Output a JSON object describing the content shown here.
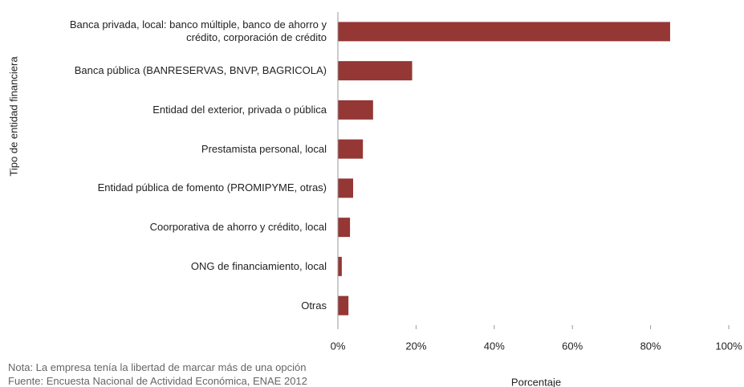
{
  "chart_data": {
    "type": "barh",
    "ylabel": "Tipo de entidad financiera",
    "xlabel": "Porcentaje",
    "notes": [
      "Nota: La empresa tenía la libertad de marcar más de una opción",
      "Fuente: Encuesta Nacional de Actividad Económica, ENAE 2012"
    ],
    "categories": [
      "Banca privada,  local: banco múltiple, banco de ahorro y crédito, corporación de crédito",
      "Banca pública (BANRESERVAS, BNVP,  BAGRICOLA)",
      "Entidad del exterior, privada o pública",
      "Prestamista personal, local",
      "Entidad pública de fomento (PROMIPYME, otras)",
      "Coorporativa de ahorro y crédito, local",
      "ONG de financiamiento, local",
      "Otras"
    ],
    "values": [
      85,
      19,
      9,
      6.4,
      3.9,
      3.1,
      1,
      2.7
    ],
    "color": "#953735",
    "xlim": [
      0,
      100
    ],
    "xticks": [
      {
        "value": 0,
        "label": "0%"
      },
      {
        "value": 20,
        "label": "20%"
      },
      {
        "value": 40,
        "label": "40%"
      },
      {
        "value": 60,
        "label": "60%"
      },
      {
        "value": 80,
        "label": "80%"
      },
      {
        "value": 100,
        "label": "100%"
      }
    ]
  }
}
